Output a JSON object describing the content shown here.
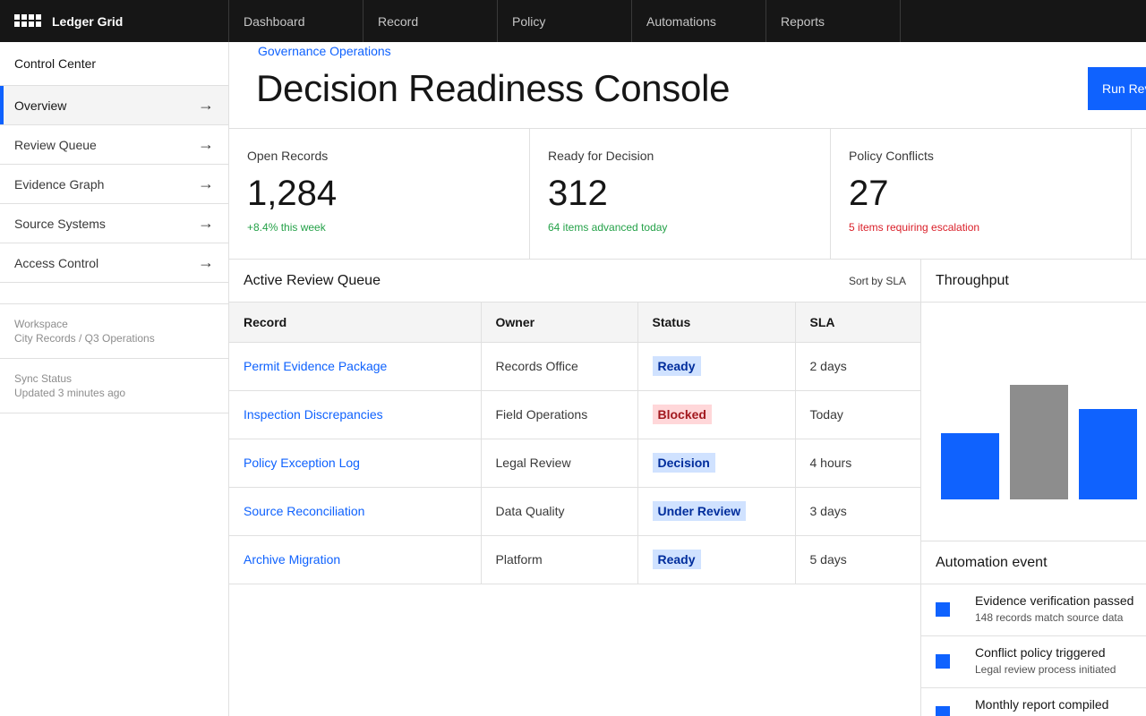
{
  "app": {
    "brand": "Ledger Grid"
  },
  "nav": [
    "Dashboard",
    "Record",
    "Policy",
    "Automations",
    "Reports"
  ],
  "sidebar": {
    "heading": "Control Center",
    "items": [
      {
        "label": "Overview",
        "active": true
      },
      {
        "label": "Review Queue"
      },
      {
        "label": "Evidence Graph"
      },
      {
        "label": "Source Systems"
      },
      {
        "label": "Access Control"
      }
    ],
    "workspace_label": "Workspace",
    "workspace_value": "City Records / Q3 Operations",
    "sync_label": "Sync Status",
    "sync_value": "Updated 3 minutes ago",
    "arrow": "→"
  },
  "header": {
    "breadcrumb": "Governance Operations",
    "title": "Decision Readiness Console",
    "run_button": "Run Review"
  },
  "kpis": [
    {
      "label": "Open Records",
      "value": "1,284",
      "sub": "+8.4% this week",
      "tone": "green"
    },
    {
      "label": "Ready for Decision",
      "value": "312",
      "sub": "64 items advanced today",
      "tone": "green"
    },
    {
      "label": "Policy Conflicts",
      "value": "27",
      "sub": "5 items requiring escalation",
      "tone": "red"
    }
  ],
  "queue": {
    "title": "Active Review Queue",
    "sort": "Sort by SLA",
    "columns": [
      "Record",
      "Owner",
      "Status",
      "SLA"
    ],
    "rows": [
      {
        "record": "Permit Evidence Package",
        "owner": "Records Office",
        "status": "Ready",
        "tone": "blue",
        "sla": "2 days"
      },
      {
        "record": "Inspection Discrepancies",
        "owner": "Field Operations",
        "status": "Blocked",
        "tone": "red",
        "sla": "Today"
      },
      {
        "record": "Policy Exception Log",
        "owner": "Legal Review",
        "status": "Decision",
        "tone": "blue",
        "sla": "4 hours"
      },
      {
        "record": "Source Reconciliation",
        "owner": "Data Quality",
        "status": "Under Review",
        "tone": "blue",
        "sla": "3 days"
      },
      {
        "record": "Archive Migration",
        "owner": "Platform",
        "status": "Ready",
        "tone": "blue",
        "sla": "5 days"
      }
    ]
  },
  "throughput": {
    "title": "Throughput",
    "bars": [
      {
        "value": 0.58,
        "color": "#0f62fe"
      },
      {
        "value": 1.0,
        "color": "#8d8d8d"
      },
      {
        "value": 0.79,
        "color": "#0f62fe"
      }
    ]
  },
  "automation": {
    "title": "Automation event",
    "events": [
      {
        "title": "Evidence verification passed",
        "detail": "148 records match source data"
      },
      {
        "title": "Conflict policy triggered",
        "detail": "Legal review process initiated"
      },
      {
        "title": "Monthly report compiled",
        "detail": ""
      }
    ]
  },
  "colors": {
    "accent": "#0f62fe",
    "topbar": "#161616",
    "success": "#24a148",
    "danger": "#da1e28"
  }
}
